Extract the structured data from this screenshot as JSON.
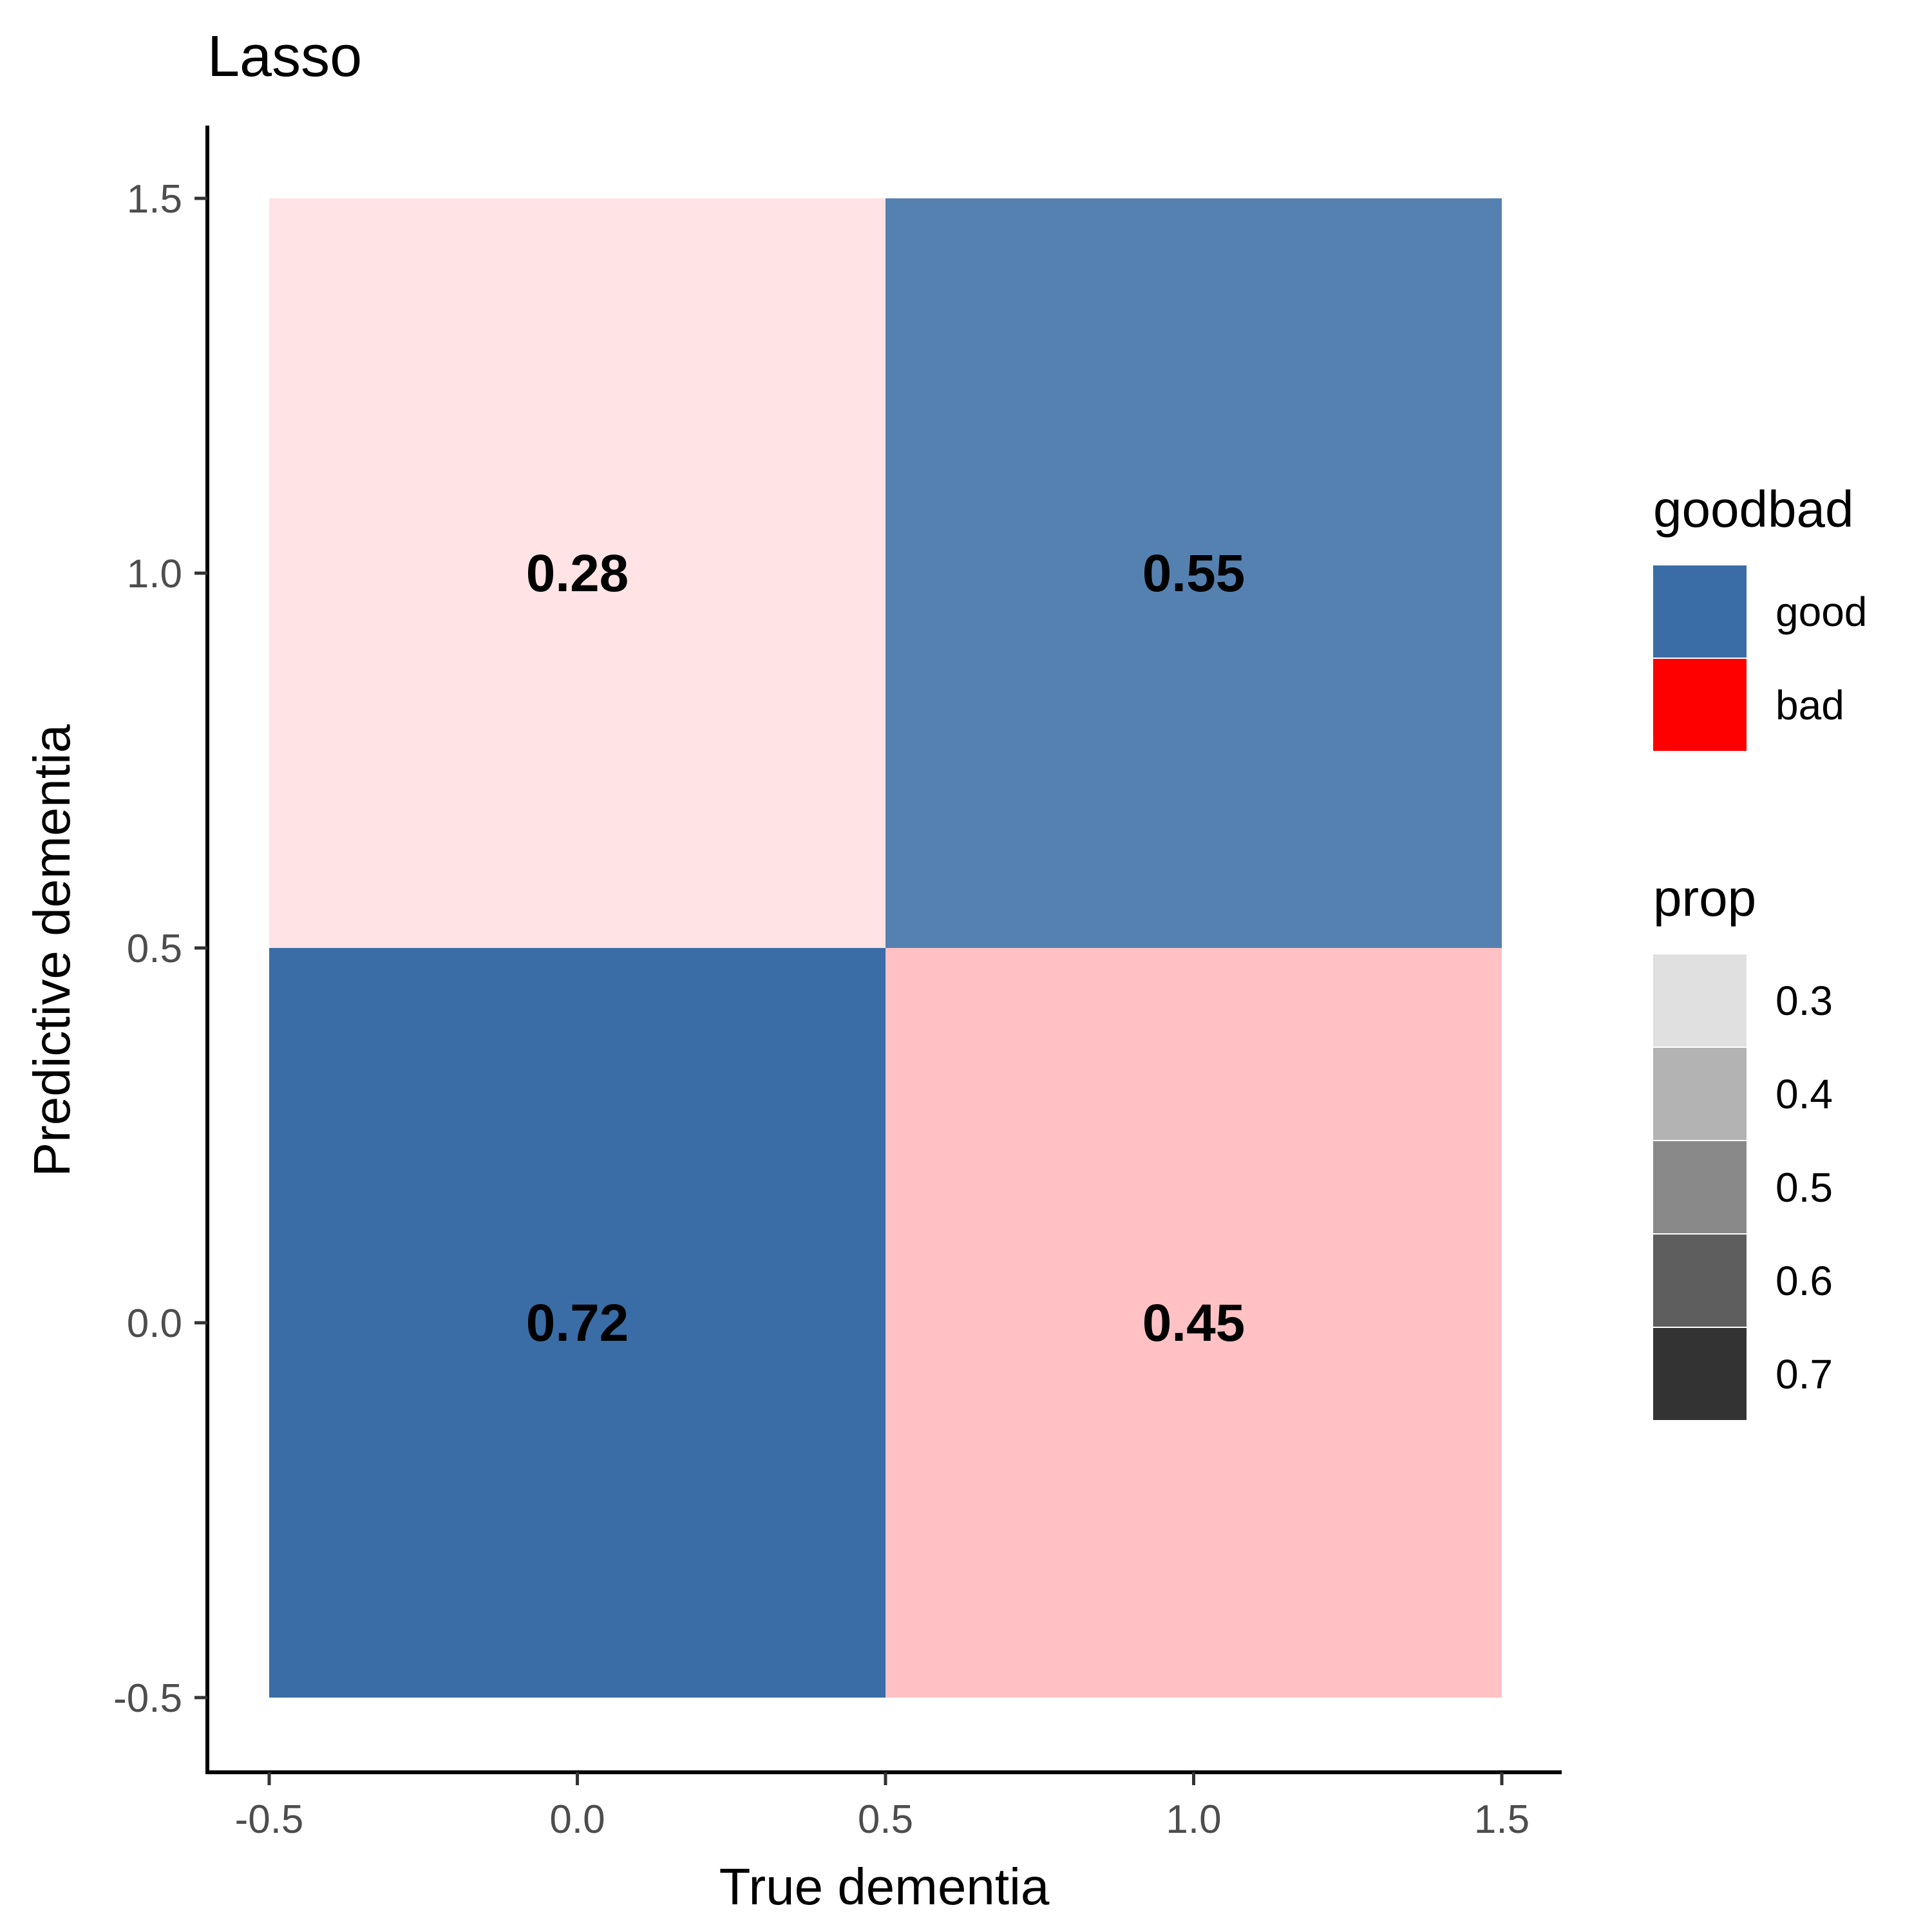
{
  "chart_data": {
    "type": "heatmap",
    "title": "Lasso",
    "xlabel": "True dementia",
    "ylabel": "Predictive dementia",
    "xlim": [
      -0.6,
      1.6
    ],
    "ylim": [
      -0.6,
      1.6
    ],
    "x_ticks": [
      -0.5,
      0.0,
      0.5,
      1.0,
      1.5
    ],
    "y_ticks": [
      -0.5,
      0.0,
      0.5,
      1.0,
      1.5
    ],
    "x_tick_labels": [
      "-0.5",
      "0.0",
      "0.5",
      "1.0",
      "1.5"
    ],
    "y_tick_labels": [
      "-0.5",
      "0.0",
      "0.5",
      "1.0",
      "1.5"
    ],
    "grid": false,
    "cells": [
      {
        "x": 0,
        "y": 0,
        "label": "0.72",
        "prop": 0.72,
        "goodbad": "good"
      },
      {
        "x": 1,
        "y": 0,
        "label": "0.45",
        "prop": 0.45,
        "goodbad": "bad"
      },
      {
        "x": 0,
        "y": 1,
        "label": "0.28",
        "prop": 0.28,
        "goodbad": "bad"
      },
      {
        "x": 1,
        "y": 1,
        "label": "0.55",
        "prop": 0.55,
        "goodbad": "good"
      }
    ],
    "legend_placement": "right",
    "legend": {
      "goodbad": {
        "title": "goodbad",
        "entries": [
          {
            "label": "good",
            "color": "#3A6DA5"
          },
          {
            "label": "bad",
            "color": "#FF0000"
          }
        ]
      },
      "prop": {
        "title": "prop",
        "entries": [
          {
            "label": "0.3",
            "value": 0.3,
            "color": "#E0E0E0"
          },
          {
            "label": "0.4",
            "value": 0.4,
            "color": "#B3B3B3"
          },
          {
            "label": "0.5",
            "value": 0.5,
            "color": "#898989"
          },
          {
            "label": "0.6",
            "value": 0.6,
            "color": "#5E5E5E"
          },
          {
            "label": "0.7",
            "value": 0.7,
            "color": "#333333"
          }
        ]
      }
    },
    "colors": {
      "good": "#3A6DA5",
      "bad": "#FF0000",
      "cell_good_high": "#3A6DA5",
      "cell_good_low": "#7FA0C5",
      "cell_bad_high": "#FF8C90",
      "cell_bad_low": "#FFE3E5"
    }
  }
}
